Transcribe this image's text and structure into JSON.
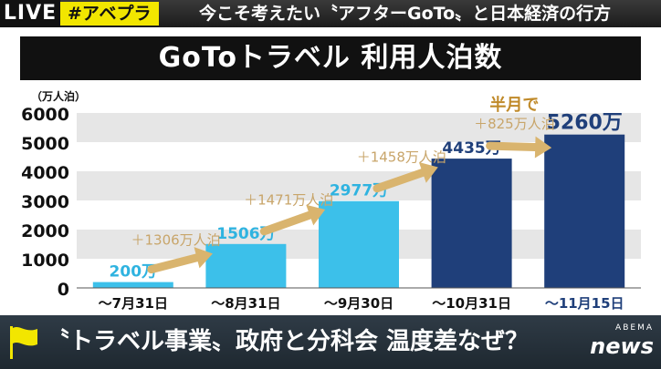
{
  "ticker": {
    "live": "LIVE",
    "hashtag": "#アベプラ",
    "headline": "今こそ考えたい〝アフターGoTo〟と日本経済の行方"
  },
  "bottom": {
    "caption": "〝トラベル事業〟政府と分科会 温度差なぜ？",
    "logo_top": "ABEMA",
    "logo_bottom": "news"
  },
  "chart_data": {
    "type": "bar",
    "title": "GoToトラベル 利用人泊数",
    "ylabel": "（万人泊）",
    "ylim": [
      0,
      6000
    ],
    "yticks": [
      0,
      1000,
      2000,
      3000,
      4000,
      5000,
      6000
    ],
    "categories": [
      "～7月31日",
      "～8月31日",
      "～9月30日",
      "～10月31日",
      "～11月15日"
    ],
    "values": [
      200,
      1506,
      2977,
      4435,
      5260
    ],
    "value_labels": [
      "200万",
      "1506万",
      "2977万",
      "4435万",
      "5260万"
    ],
    "bar_colors": [
      "#3cc0ea",
      "#3cc0ea",
      "#3cc0ea",
      "#1f3f7a",
      "#1f3f7a"
    ],
    "increments": [
      "＋1306万人泊",
      "＋1471万人泊",
      "＋1458万人泊",
      "＋825万人泊"
    ],
    "annotation": "半月で",
    "colors": {
      "arrow": "#d9b46e",
      "increment_text": "#c8a56a",
      "annotation_text": "#c08a2a",
      "stripe": "#e6e6e6"
    }
  }
}
